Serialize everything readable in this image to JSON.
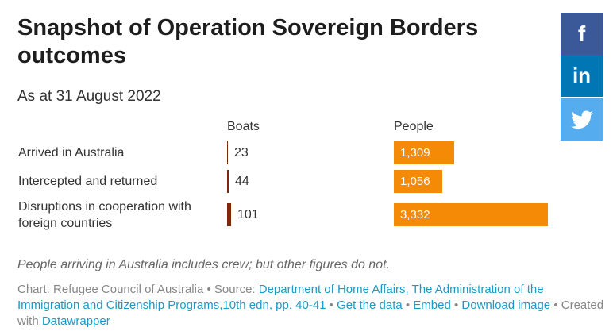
{
  "title": "Snapshot of Operation Sovereign Borders outcomes",
  "subtitle": "As at 31 August 2022",
  "note": "People arriving in Australia includes crew; but other figures do not.",
  "footer": {
    "chart_prefix": "Chart: Refugee Council of Australia • Source: ",
    "source_link": "Department of Home Affairs, The Administration of the Immigration and Citizenship Programs,10th edn, pp. 40-41",
    "sep1": " • ",
    "get_data": "Get the data",
    "sep2": " • ",
    "embed": "Embed",
    "sep3": " • ",
    "download": "Download image",
    "created_prefix": " • Created with ",
    "datawrapper": "Datawrapper"
  },
  "share": {
    "facebook": "f",
    "linkedin": "in",
    "twitter": "twitter-bird"
  },
  "colors": {
    "boats": "#7a2a08",
    "people": "#f58a07"
  },
  "chart_data": {
    "type": "bar",
    "categories": [
      "Arrived in Australia",
      "Intercepted and returned",
      "Disruptions in cooperation with foreign countries"
    ],
    "series": [
      {
        "name": "Boats",
        "values": [
          23,
          44,
          101
        ],
        "labels": [
          "23",
          "44",
          "101"
        ]
      },
      {
        "name": "People",
        "values": [
          1309,
          1056,
          3332
        ],
        "labels": [
          "1,309",
          "1,056",
          "3,332"
        ]
      }
    ]
  }
}
